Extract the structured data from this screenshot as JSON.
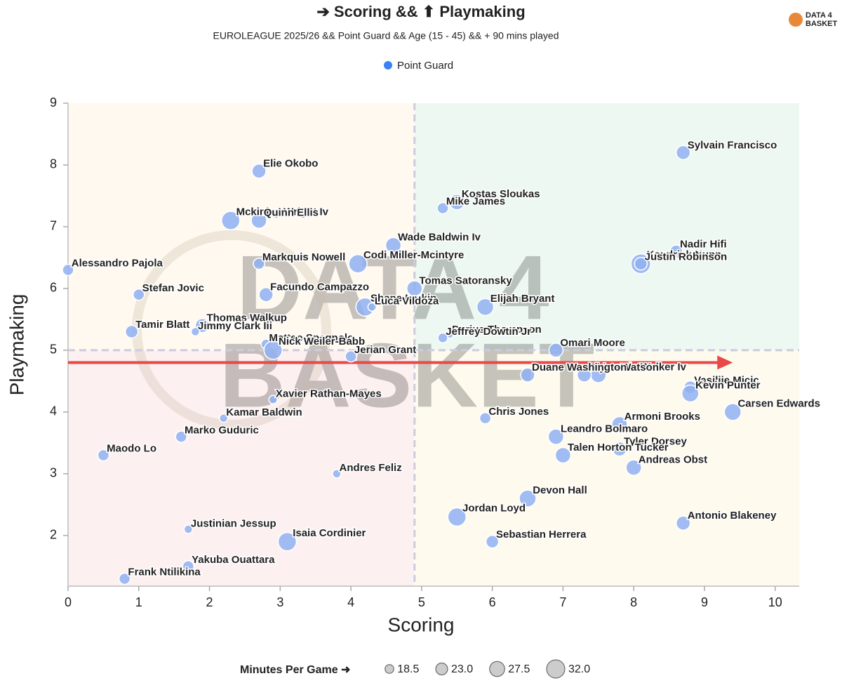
{
  "chart_data": {
    "type": "scatter",
    "title": "➔ Scoring && ⬆ Playmaking",
    "subtitle": "EUROLEAGUE 2025/26 && Point Guard && Age (15 - 45) && + 90 mins played",
    "logo": [
      "DATA 4",
      "BASKET"
    ],
    "x_label": "Scoring",
    "y_label": "Playmaking",
    "xlim": [
      0,
      10.34
    ],
    "ylim": [
      1.18,
      9
    ],
    "xticks": [
      0,
      1,
      2,
      3,
      4,
      5,
      6,
      7,
      8,
      9,
      10
    ],
    "yticks": [
      2,
      3,
      4,
      5,
      6,
      7,
      8,
      9
    ],
    "quadrant_x": 4.9,
    "quadrant_y": 5,
    "quadrant_colors": [
      "#fff9f0",
      "#edf8f2",
      "#fdf0f0",
      "#fffaee"
    ],
    "reference_arrow": {
      "x": [
        0,
        9.4
      ],
      "y": 4.8,
      "color": "#e84848"
    },
    "series": [
      {
        "name": "Point Guard",
        "color": "#3b82f6",
        "fill": "#8fb0f2",
        "labels": [
          "Sylvain Francisco",
          "Elie Okobo",
          "Kostas Sloukas",
          "Mike James",
          "Mckinley Wright Iv",
          "Quinn Ellis",
          "Wade Baldwin Iv",
          "Nadir Hifi",
          "Kendrick Nunn",
          "Justin Robinson",
          "Alessandro Pajola",
          "Markquis Nowell",
          "Codi Miller-Mcintyre",
          "Tomas Satoransky",
          "Stefan Jovic",
          "Facundo Campazzo",
          "Shane Larkin",
          "Luca Vildoza",
          "Elijah Bryant",
          "Tamir Blatt",
          "Thomas Walkup",
          "Jimmy Clark Iii",
          "Darius Thompson",
          "Jeffrey Dowtin Jr",
          "Matteo Spagnolo",
          "Nick Weiler-Babb",
          "Omari Moore",
          "Jerian Grant",
          "Lonnie Walker Iv",
          "Glynn Watson",
          "Duane Washington",
          "Vasilije Micic",
          "Kevin Punter",
          "Xavier Rathan-Mayes",
          "Carsen Edwards",
          "Kamar Baldwin",
          "Chris Jones",
          "Armoni Brooks",
          "Marko Guduric",
          "Leandro Bolmaro",
          "Tyler Dorsey",
          "Maodo Lo",
          "Talen Horton Tucker",
          "Andreas Obst",
          "Andres Feliz",
          "Devon Hall",
          "Jordan Loyd",
          "Antonio Blakeney",
          "Justinian Jessup",
          "Isaia Cordinier",
          "Sebastian Herrera",
          "Yakuba Ouattara",
          "Frank Ntilikina"
        ],
        "x": [
          8.7,
          2.7,
          5.5,
          5.3,
          2.3,
          2.7,
          4.6,
          8.6,
          8.1,
          8.1,
          0,
          2.7,
          4.1,
          4.9,
          1.0,
          2.8,
          4.2,
          4.3,
          5.9,
          0.9,
          1.9,
          1.8,
          5.4,
          5.3,
          2.8,
          2.9,
          6.9,
          4.0,
          7.5,
          7.3,
          6.5,
          8.8,
          8.8,
          2.9,
          9.4,
          2.2,
          5.9,
          7.8,
          1.6,
          6.9,
          7.8,
          0.5,
          7.0,
          8.0,
          3.8,
          6.5,
          5.5,
          8.7,
          1.7,
          3.1,
          6.0,
          1.7,
          0.8
        ],
        "values": [
          8.2,
          7.9,
          7.4,
          7.3,
          7.1,
          7.1,
          6.7,
          6.6,
          6.4,
          6.4,
          6.3,
          6.4,
          6.4,
          6.0,
          5.9,
          5.9,
          5.7,
          5.7,
          5.7,
          5.3,
          5.4,
          5.3,
          5.25,
          5.2,
          5.1,
          5.0,
          5.0,
          4.9,
          4.6,
          4.6,
          4.6,
          4.4,
          4.3,
          4.2,
          4.0,
          3.9,
          3.9,
          3.8,
          3.6,
          3.6,
          3.4,
          3.3,
          3.3,
          3.1,
          3.0,
          2.6,
          2.3,
          2.2,
          2.1,
          1.9,
          1.9,
          1.5,
          1.3
        ],
        "sizes": [
          26,
          26,
          28,
          22,
          32,
          28,
          28,
          24,
          34,
          24,
          22,
          22,
          32,
          28,
          22,
          26,
          32,
          18,
          30,
          24,
          26,
          18,
          16,
          20,
          20,
          32,
          26,
          22,
          28,
          26,
          26,
          24,
          30,
          18,
          30,
          18,
          22,
          28,
          22,
          28,
          26,
          22,
          28,
          28,
          18,
          30,
          32,
          26,
          18,
          32,
          24,
          22,
          22
        ]
      }
    ],
    "size_legend": {
      "title": "Minutes Per Game ➜",
      "values": [
        18.5,
        {
          "value": 23,
          "label": "23.0"
        },
        27.5,
        {
          "value": 32,
          "label": "32.0"
        }
      ]
    }
  }
}
